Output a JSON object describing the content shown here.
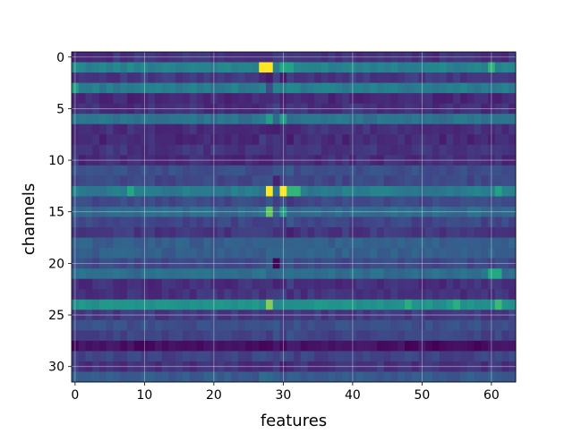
{
  "chart_data": {
    "type": "heatmap",
    "title": "",
    "xlabel": "features",
    "ylabel": "channels",
    "x_range": [
      0,
      63
    ],
    "y_range": [
      0,
      31
    ],
    "y_inverted": true,
    "xticks": [
      0,
      10,
      20,
      30,
      40,
      50,
      60
    ],
    "yticks": [
      0,
      5,
      10,
      15,
      20,
      25,
      30
    ],
    "grid": true,
    "colormap": "viridis",
    "value_range": [
      0,
      1
    ],
    "n_rows": 32,
    "n_cols": 64,
    "row_base": [
      0.18,
      0.56,
      0.2,
      0.52,
      0.15,
      0.17,
      0.48,
      0.17,
      0.15,
      0.19,
      0.16,
      0.3,
      0.27,
      0.52,
      0.28,
      0.43,
      0.26,
      0.2,
      0.38,
      0.38,
      0.28,
      0.45,
      0.17,
      0.18,
      0.64,
      0.21,
      0.3,
      0.25,
      0.05,
      0.25,
      0.18,
      0.36
    ],
    "hot_cells": [
      {
        "row": 1,
        "col": 27,
        "value": 1.0
      },
      {
        "row": 1,
        "col": 28,
        "value": 1.0
      },
      {
        "row": 1,
        "col": 29,
        "value": 0.55
      },
      {
        "row": 1,
        "col": 30,
        "value": 0.75
      },
      {
        "row": 1,
        "col": 31,
        "value": 0.72
      },
      {
        "row": 1,
        "col": 60,
        "value": 0.8
      },
      {
        "row": 3,
        "col": 0,
        "value": 0.7
      },
      {
        "row": 3,
        "col": 27,
        "value": 0.55
      },
      {
        "row": 3,
        "col": 28,
        "value": 0.3
      },
      {
        "row": 6,
        "col": 28,
        "value": 0.7
      },
      {
        "row": 6,
        "col": 30,
        "value": 0.7
      },
      {
        "row": 13,
        "col": 8,
        "value": 0.75
      },
      {
        "row": 13,
        "col": 28,
        "value": 1.0
      },
      {
        "row": 13,
        "col": 30,
        "value": 1.0
      },
      {
        "row": 13,
        "col": 31,
        "value": 0.82
      },
      {
        "row": 13,
        "col": 32,
        "value": 0.82
      },
      {
        "row": 13,
        "col": 61,
        "value": 0.72
      },
      {
        "row": 15,
        "col": 28,
        "value": 0.9
      },
      {
        "row": 15,
        "col": 30,
        "value": 0.7
      },
      {
        "row": 21,
        "col": 60,
        "value": 0.75
      },
      {
        "row": 21,
        "col": 61,
        "value": 0.75
      },
      {
        "row": 24,
        "col": 28,
        "value": 0.92
      },
      {
        "row": 24,
        "col": 48,
        "value": 0.78
      },
      {
        "row": 24,
        "col": 55,
        "value": 0.78
      },
      {
        "row": 24,
        "col": 61,
        "value": 0.85
      }
    ],
    "dark_cells": [
      {
        "row": 20,
        "col": 29,
        "value": 0.02
      },
      {
        "row": 12,
        "col": 29,
        "value": 0.12
      },
      {
        "row": 2,
        "col": 28,
        "value": 0.1
      }
    ]
  }
}
